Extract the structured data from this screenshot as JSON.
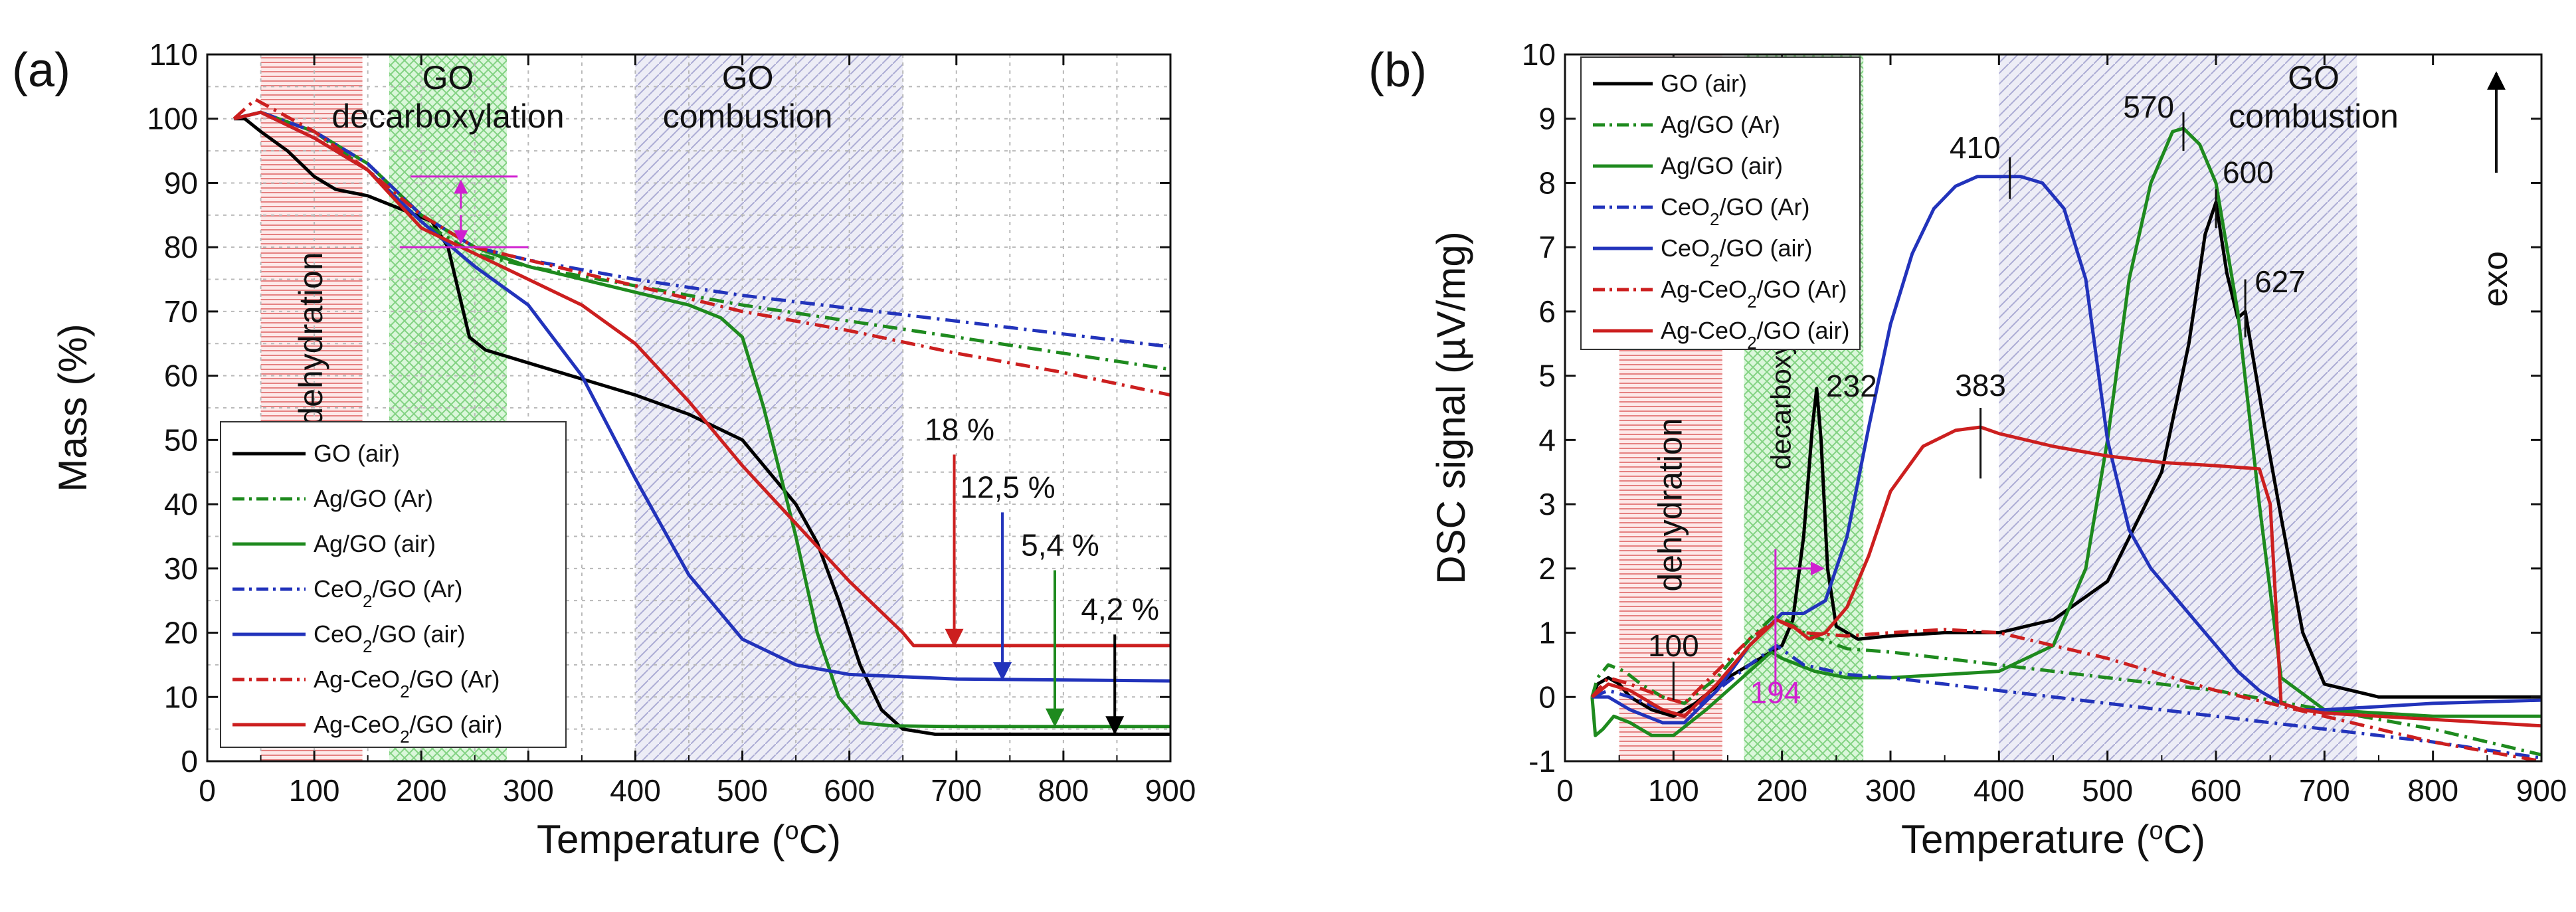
{
  "chart_data": [
    {
      "panel": "(a)",
      "type": "line",
      "xlabel": "Temperature (°C)",
      "ylabel": "Mass (%)",
      "xlim": [
        0,
        900
      ],
      "ylim": [
        0,
        110
      ],
      "xticks": [
        0,
        100,
        200,
        300,
        400,
        500,
        600,
        700,
        800,
        900
      ],
      "yticks": [
        0,
        10,
        20,
        30,
        40,
        50,
        60,
        70,
        80,
        90,
        100,
        110
      ],
      "grid": true,
      "regions": [
        {
          "label": "dehydration",
          "range": [
            50,
            145
          ],
          "color": "#e23a3a",
          "vertical": true
        },
        {
          "label": "GO decarboxylation",
          "range": [
            170,
            280
          ],
          "color": "#3ec43e",
          "label_lines": [
            "GO",
            "decarboxylation"
          ]
        },
        {
          "label": "GO combustion",
          "range": [
            400,
            650
          ],
          "color": "#6a6ab5",
          "label_lines": [
            "GO",
            "combustion"
          ]
        }
      ],
      "series": [
        {
          "name": "GO (air)",
          "color": "#000000",
          "dash": "solid",
          "x": [
            25,
            35,
            50,
            75,
            100,
            120,
            150,
            180,
            210,
            225,
            235,
            245,
            260,
            300,
            400,
            450,
            500,
            550,
            570,
            590,
            610,
            630,
            650,
            680,
            700,
            900
          ],
          "y": [
            100,
            100,
            98,
            95,
            91,
            89,
            88,
            86,
            84,
            80,
            73,
            66,
            64,
            62,
            57,
            54,
            50,
            40,
            34,
            25,
            15,
            8,
            5,
            4.2,
            4.2,
            4.2
          ]
        },
        {
          "name": "Ag/GO (Ar)",
          "color": "#1e8a1e",
          "dash": "dashdot",
          "x": [
            25,
            50,
            100,
            150,
            200,
            250,
            300,
            400,
            500,
            600,
            700,
            800,
            900
          ],
          "y": [
            100,
            101,
            98,
            92,
            84,
            79,
            77,
            74,
            71,
            68.5,
            66,
            63.5,
            61
          ]
        },
        {
          "name": "Ag/GO (air)",
          "color": "#1e8a1e",
          "dash": "solid",
          "x": [
            25,
            50,
            100,
            150,
            200,
            250,
            300,
            350,
            400,
            450,
            480,
            500,
            520,
            550,
            570,
            590,
            610,
            640,
            700,
            900
          ],
          "y": [
            100,
            101,
            98,
            93,
            85,
            80,
            77,
            75,
            73,
            71,
            69,
            66,
            55,
            35,
            20,
            10,
            6,
            5.5,
            5.4,
            5.4
          ]
        },
        {
          "name": "CeO2/GO (Ar)",
          "color": "#2233bb",
          "dash": "dashdot",
          "x": [
            25,
            50,
            100,
            150,
            200,
            250,
            300,
            400,
            500,
            600,
            700,
            800,
            900
          ],
          "y": [
            100,
            101,
            98,
            93,
            85,
            80,
            78,
            75,
            72.5,
            70.5,
            68.5,
            66.5,
            64.5
          ]
        },
        {
          "name": "CeO2/GO (air)",
          "color": "#2233bb",
          "dash": "solid",
          "x": [
            25,
            50,
            100,
            150,
            200,
            250,
            300,
            350,
            400,
            450,
            500,
            550,
            600,
            700,
            900
          ],
          "y": [
            100,
            101,
            97,
            92,
            84,
            77,
            71,
            60,
            44,
            29,
            19,
            15,
            13.5,
            12.8,
            12.5
          ]
        },
        {
          "name": "Ag-CeO2/GO (Ar)",
          "color": "#cc1f1f",
          "dash": "dashdot",
          "x": [
            25,
            45,
            100,
            150,
            200,
            250,
            300,
            400,
            500,
            600,
            700,
            800,
            900
          ],
          "y": [
            100,
            103,
            98,
            92,
            85,
            80,
            78,
            74,
            70,
            67,
            63.5,
            60.5,
            57
          ]
        },
        {
          "name": "Ag-CeO2/GO (air)",
          "color": "#cc1f1f",
          "dash": "solid",
          "x": [
            25,
            50,
            100,
            150,
            200,
            250,
            300,
            350,
            400,
            450,
            500,
            550,
            600,
            650,
            660,
            900
          ],
          "y": [
            100,
            101,
            97,
            92,
            83,
            79,
            75,
            71,
            65,
            56,
            46,
            37,
            28,
            20,
            18,
            18
          ]
        }
      ],
      "annotations": [
        {
          "text": "18 %",
          "x": 698,
          "y": 50,
          "arrow_to": [
            698,
            18
          ],
          "color": "#cc1f1f"
        },
        {
          "text": "12,5 %",
          "x": 743,
          "y": 41,
          "arrow_to": [
            743,
            12.8
          ],
          "color": "#2233bb"
        },
        {
          "text": "5,4 %",
          "x": 792,
          "y": 32,
          "arrow_to": [
            792,
            5.6
          ],
          "color": "#1e8a1e"
        },
        {
          "text": "4,2 %",
          "x": 848,
          "y": 22,
          "arrow_to": [
            848,
            4.4
          ],
          "color": "#000000"
        }
      ],
      "legend": "bottom-left"
    },
    {
      "panel": "(b)",
      "type": "line",
      "xlabel": "Temperature (°C)",
      "ylabel": "DSC signal (µV/mg)",
      "xlim": [
        0,
        900
      ],
      "ylim": [
        -1,
        10
      ],
      "xticks": [
        0,
        100,
        200,
        300,
        400,
        500,
        600,
        700,
        800,
        900
      ],
      "yticks": [
        -1,
        0,
        1,
        2,
        3,
        4,
        5,
        6,
        7,
        8,
        9,
        10
      ],
      "grid": false,
      "exo_label": "exo",
      "regions": [
        {
          "label": "dehydration",
          "range": [
            50,
            145
          ],
          "color": "#e23a3a",
          "vertical": true
        },
        {
          "label": "decarboxylation",
          "range": [
            165,
            275
          ],
          "color": "#3ec43e",
          "vertical": true
        },
        {
          "label": "GO combustion",
          "range": [
            400,
            730
          ],
          "color": "#6a6ab5",
          "label_lines": [
            "GO",
            "combustion"
          ]
        }
      ],
      "series": [
        {
          "name": "GO (air)",
          "color": "#000000",
          "dash": "solid",
          "x": [
            25,
            30,
            40,
            50,
            60,
            80,
            100,
            120,
            150,
            180,
            200,
            210,
            220,
            228,
            232,
            236,
            242,
            250,
            270,
            300,
            350,
            400,
            450,
            500,
            550,
            575,
            590,
            600,
            610,
            620,
            627,
            635,
            645,
            660,
            680,
            700,
            750,
            900
          ],
          "y": [
            0,
            0.2,
            0.3,
            0.2,
            0,
            -0.2,
            -0.3,
            -0.1,
            0.3,
            0.6,
            0.8,
            1.2,
            2.5,
            4.2,
            4.8,
            4.0,
            2.0,
            1.1,
            0.9,
            0.95,
            1.0,
            1.0,
            1.2,
            1.8,
            3.5,
            5.5,
            7.2,
            7.7,
            6.6,
            5.9,
            6.0,
            5.2,
            4.2,
            2.8,
            1.0,
            0.2,
            0,
            0
          ]
        },
        {
          "name": "Ag/GO (Ar)",
          "color": "#1e8a1e",
          "dash": "dashdot",
          "x": [
            25,
            30,
            40,
            55,
            70,
            90,
            110,
            140,
            170,
            195,
            220,
            260,
            300,
            400,
            500,
            600,
            700,
            800,
            900
          ],
          "y": [
            0,
            0.3,
            0.5,
            0.4,
            0.2,
            0,
            -0.1,
            0.3,
            0.9,
            1.3,
            1.0,
            0.75,
            0.7,
            0.5,
            0.3,
            0.1,
            -0.2,
            -0.5,
            -0.9
          ]
        },
        {
          "name": "Ag/GO (air)",
          "color": "#1e8a1e",
          "dash": "solid",
          "x": [
            25,
            28,
            35,
            45,
            60,
            80,
            100,
            130,
            170,
            190,
            200,
            230,
            260,
            300,
            400,
            450,
            480,
            500,
            520,
            540,
            560,
            570,
            585,
            600,
            620,
            640,
            660,
            700,
            800,
            900
          ],
          "y": [
            0,
            -0.6,
            -0.5,
            -0.3,
            -0.4,
            -0.6,
            -0.6,
            -0.2,
            0.4,
            0.7,
            0.6,
            0.4,
            0.3,
            0.3,
            0.4,
            0.8,
            2.0,
            4.0,
            6.5,
            8.0,
            8.8,
            8.85,
            8.6,
            8.0,
            6.0,
            3.0,
            0.3,
            -0.2,
            -0.3,
            -0.3
          ]
        },
        {
          "name": "CeO2/GO (Ar)",
          "color": "#2233bb",
          "dash": "dashdot",
          "x": [
            25,
            40,
            60,
            90,
            110,
            140,
            170,
            195,
            220,
            260,
            300,
            400,
            500,
            600,
            700,
            800,
            900
          ],
          "y": [
            0,
            0.1,
            0,
            -0.2,
            -0.3,
            0.1,
            0.5,
            0.8,
            0.5,
            0.35,
            0.3,
            0.1,
            -0.1,
            -0.3,
            -0.5,
            -0.7,
            -0.95
          ]
        },
        {
          "name": "CeO2/GO (air)",
          "color": "#2233bb",
          "dash": "solid",
          "x": [
            25,
            40,
            60,
            90,
            110,
            140,
            170,
            200,
            220,
            240,
            260,
            280,
            300,
            320,
            340,
            360,
            380,
            400,
            420,
            440,
            460,
            480,
            500,
            520,
            540,
            560,
            580,
            600,
            620,
            640,
            660,
            680,
            700,
            800,
            900
          ],
          "y": [
            0,
            0,
            -0.2,
            -0.4,
            -0.4,
            0.1,
            0.8,
            1.3,
            1.3,
            1.5,
            2.5,
            4.2,
            5.8,
            6.9,
            7.6,
            7.95,
            8.1,
            8.1,
            8.1,
            8.0,
            7.6,
            6.5,
            4.0,
            2.6,
            2.0,
            1.6,
            1.2,
            0.8,
            0.4,
            0.1,
            -0.1,
            -0.2,
            -0.2,
            -0.1,
            -0.05
          ]
        },
        {
          "name": "Ag-CeO2/GO (Ar)",
          "color": "#cc1f1f",
          "dash": "dashdot",
          "x": [
            25,
            40,
            60,
            90,
            110,
            140,
            170,
            195,
            220,
            260,
            300,
            350,
            400,
            500,
            600,
            700,
            800,
            900
          ],
          "y": [
            0,
            0.3,
            0.2,
            0,
            -0.1,
            0.4,
            0.9,
            1.2,
            1.0,
            0.95,
            1.0,
            1.05,
            1.0,
            0.6,
            0.1,
            -0.3,
            -0.7,
            -1.0
          ]
        },
        {
          "name": "Ag-CeO2/GO (air)",
          "color": "#cc1f1f",
          "dash": "solid",
          "x": [
            25,
            40,
            60,
            90,
            110,
            140,
            170,
            195,
            210,
            225,
            240,
            260,
            280,
            300,
            330,
            360,
            383,
            400,
            450,
            500,
            550,
            600,
            640,
            650,
            655,
            660,
            680,
            700,
            800,
            900
          ],
          "y": [
            0,
            0.2,
            0.1,
            -0.2,
            -0.3,
            0.2,
            0.8,
            1.2,
            1.1,
            0.9,
            1.0,
            1.4,
            2.2,
            3.2,
            3.9,
            4.15,
            4.2,
            4.1,
            3.9,
            3.75,
            3.65,
            3.6,
            3.55,
            3.0,
            1.5,
            -0.1,
            -0.2,
            -0.25,
            -0.35,
            -0.45
          ]
        }
      ],
      "peak_labels": [
        {
          "text": "100",
          "x": 100,
          "y": 0.5,
          "marker_from": -0.05,
          "marker_to": 0.55
        },
        {
          "text": "232",
          "x": 232,
          "y": 4.8
        },
        {
          "text": "410",
          "x": 410,
          "y": 8.1,
          "marker_from": 7.75,
          "marker_to": 8.4
        },
        {
          "text": "383",
          "x": 383,
          "y": 4.2,
          "marker_from": 3.4,
          "marker_to": 4.5
        },
        {
          "text": "570",
          "x": 570,
          "y": 8.85,
          "marker_from": 8.5,
          "marker_to": 9.1
        },
        {
          "text": "600",
          "x": 600,
          "y": 7.7,
          "marker_from": 7.3,
          "marker_to": 7.9
        },
        {
          "text": "627",
          "x": 627,
          "y": 6.0,
          "marker_from": 5.6,
          "marker_to": 6.5
        },
        {
          "text": "194",
          "x": 194,
          "y": 0.8,
          "color": "#d020d0"
        }
      ],
      "legend": "top-left"
    }
  ]
}
